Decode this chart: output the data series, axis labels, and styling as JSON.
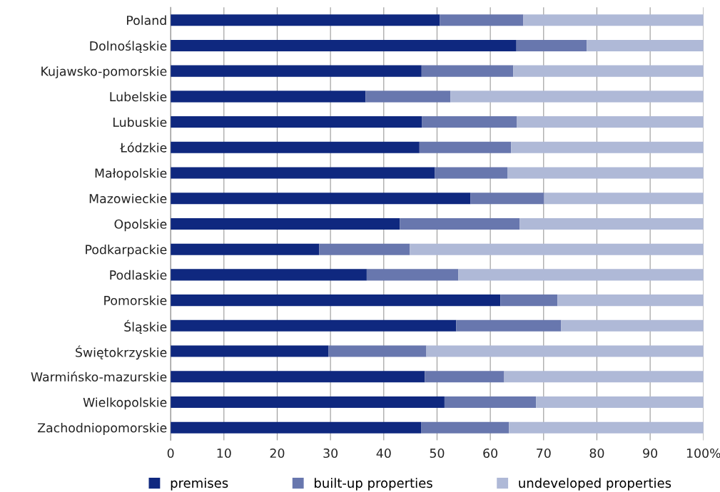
{
  "chart_data": {
    "type": "bar",
    "orientation": "horizontal",
    "stacked": true,
    "categories": [
      "Poland",
      "Dolnośląskie",
      "Kujawsko-pomorskie",
      "Lubelskie",
      "Lubuskie",
      "Łódzkie",
      "Małopolskie",
      "Mazowieckie",
      "Opolskie",
      "Podkarpackie",
      "Podlaskie",
      "Pomorskie",
      "Śląskie",
      "Świętokrzyskie",
      "Warmińsko-mazurskie",
      "Wielkopolskie",
      "Zachodniopomorskie"
    ],
    "series": [
      {
        "name": "premises",
        "color": "#0f287f",
        "values": [
          50.5,
          64.9,
          47.1,
          36.6,
          47.2,
          46.7,
          49.6,
          56.3,
          43.0,
          27.9,
          36.8,
          61.9,
          53.6,
          29.6,
          47.7,
          51.4,
          47.0
        ]
      },
      {
        "name": "built-up properties",
        "color": "#6877ae",
        "values": [
          15.7,
          13.2,
          17.2,
          15.9,
          17.8,
          17.2,
          13.6,
          13.8,
          22.5,
          17.0,
          17.2,
          10.7,
          19.7,
          18.4,
          14.9,
          17.2,
          16.5
        ]
      },
      {
        "name": "undeveloped properties",
        "color": "#afb9d7",
        "values": [
          33.8,
          21.9,
          35.7,
          47.5,
          35.0,
          36.1,
          36.8,
          29.9,
          34.5,
          55.1,
          46.0,
          27.4,
          26.7,
          52.0,
          37.4,
          31.4,
          36.5
        ]
      }
    ],
    "xlim": [
      0,
      100
    ],
    "xticks": [
      0,
      10,
      20,
      30,
      40,
      50,
      60,
      70,
      80,
      90,
      {
        "value": 100,
        "label": "100%"
      }
    ],
    "grid": "x",
    "legend": "bottom"
  }
}
